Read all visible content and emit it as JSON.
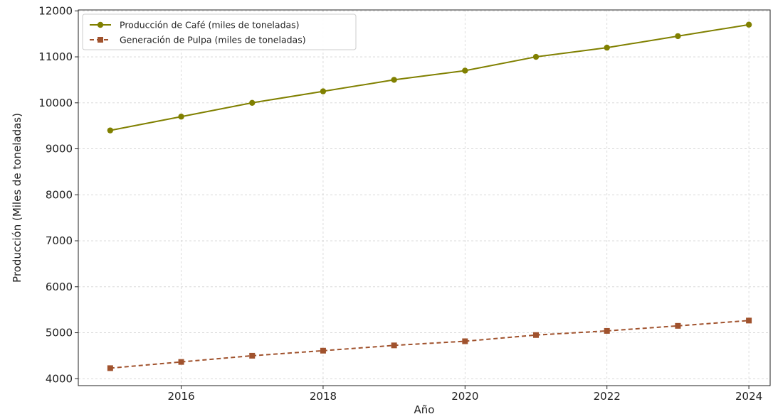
{
  "chart_data": {
    "type": "line",
    "title": "",
    "xlabel": "Año",
    "ylabel": "Producción (Miles de toneladas)",
    "x": [
      2015,
      2016,
      2017,
      2018,
      2019,
      2020,
      2021,
      2022,
      2023,
      2024
    ],
    "xlim": [
      2014.55,
      2024.3
    ],
    "ylim": [
      3850,
      12020
    ],
    "x_ticks": [
      2016,
      2018,
      2020,
      2022,
      2024
    ],
    "y_ticks": [
      4000,
      5000,
      6000,
      7000,
      8000,
      9000,
      10000,
      11000,
      12000
    ],
    "grid": true,
    "legend_position": "top-left",
    "series": [
      {
        "name": "Producción de Café (miles de toneladas)",
        "values": [
          9400,
          9700,
          10000,
          10250,
          10500,
          10700,
          11000,
          11200,
          11450,
          11700
        ],
        "color": "#808000",
        "line_style": "solid",
        "marker": "circle"
      },
      {
        "name": "Generación de Pulpa (miles de toneladas)",
        "values": [
          4230,
          4365,
          4500,
          4610,
          4725,
          4815,
          4950,
          5040,
          5150,
          5265
        ],
        "color": "#a0522d",
        "line_style": "dashed",
        "marker": "square"
      }
    ]
  }
}
